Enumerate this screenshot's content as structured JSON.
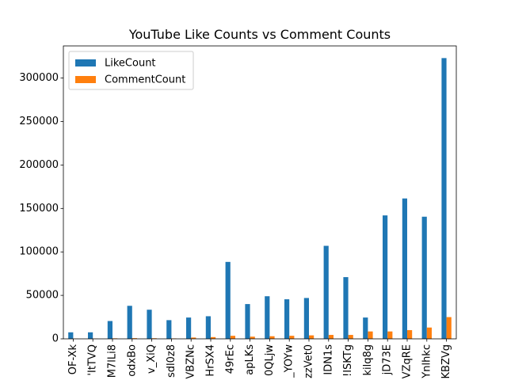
{
  "chart_data": {
    "type": "bar",
    "title": "YouTube Like Counts vs Comment Counts",
    "xlabel": "",
    "ylabel": "",
    "ylim": [
      0,
      337000
    ],
    "yticks": [
      0,
      50000,
      100000,
      150000,
      200000,
      250000,
      300000
    ],
    "ytick_labels": [
      "0",
      "50000",
      "100000",
      "150000",
      "200000",
      "250000",
      "300000"
    ],
    "categories": [
      "OF-Xk",
      "'ItTVQ",
      "M7lLi8",
      "odxBo",
      "v_XiQ",
      "sdl0z8",
      "VBZNc",
      "HrSX4",
      "49rEc",
      "apLKs",
      "0QLjw",
      "_YOYw",
      "zzVet0",
      "IDN1s",
      "!ISKTg",
      "kilq8g",
      "jD73E",
      "VZqRE",
      "Ynlhkc",
      "KBZVg"
    ],
    "series": [
      {
        "name": "LikeCount",
        "color": "#1f77b4",
        "values": [
          7500,
          7500,
          20500,
          38000,
          33500,
          21500,
          24500,
          26000,
          88500,
          40000,
          49000,
          45500,
          47000,
          107000,
          71000,
          24500,
          142000,
          161500,
          140500,
          323000
        ]
      },
      {
        "name": "CommentCount",
        "color": "#ff7f0e",
        "values": [
          200,
          250,
          600,
          800,
          700,
          500,
          1500,
          2000,
          3500,
          2500,
          3000,
          3500,
          4000,
          4500,
          4500,
          8500,
          8500,
          10000,
          13000,
          25000
        ]
      }
    ],
    "legend": "top-left",
    "grid": false
  }
}
